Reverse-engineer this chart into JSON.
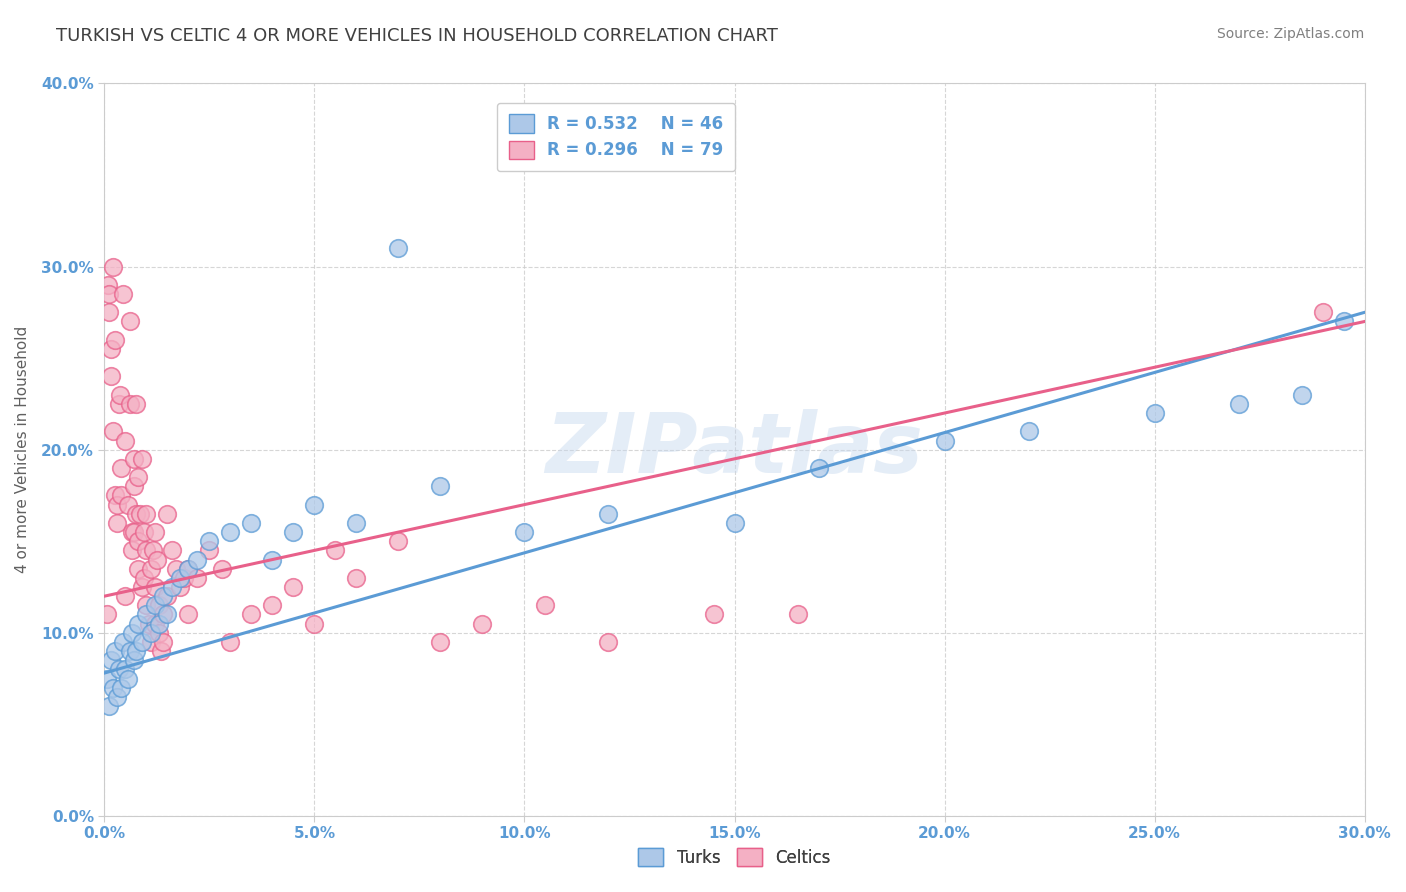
{
  "title": "TURKISH VS CELTIC 4 OR MORE VEHICLES IN HOUSEHOLD CORRELATION CHART",
  "source": "Source: ZipAtlas.com",
  "xlabel_range": [
    0.0,
    30.0
  ],
  "ylabel_range": [
    0.0,
    40.0
  ],
  "ylabel_label": "4 or more Vehicles in Household",
  "legend_bottom": [
    "Turks",
    "Celtics"
  ],
  "turks": {
    "R": 0.532,
    "N": 46,
    "color": "#adc8e8",
    "line_color": "#5b9bd5",
    "scatter": [
      [
        0.05,
        7.5
      ],
      [
        0.1,
        6.0
      ],
      [
        0.15,
        8.5
      ],
      [
        0.2,
        7.0
      ],
      [
        0.25,
        9.0
      ],
      [
        0.3,
        6.5
      ],
      [
        0.35,
        8.0
      ],
      [
        0.4,
        7.0
      ],
      [
        0.45,
        9.5
      ],
      [
        0.5,
        8.0
      ],
      [
        0.55,
        7.5
      ],
      [
        0.6,
        9.0
      ],
      [
        0.65,
        10.0
      ],
      [
        0.7,
        8.5
      ],
      [
        0.75,
        9.0
      ],
      [
        0.8,
        10.5
      ],
      [
        0.9,
        9.5
      ],
      [
        1.0,
        11.0
      ],
      [
        1.1,
        10.0
      ],
      [
        1.2,
        11.5
      ],
      [
        1.3,
        10.5
      ],
      [
        1.4,
        12.0
      ],
      [
        1.5,
        11.0
      ],
      [
        1.6,
        12.5
      ],
      [
        1.8,
        13.0
      ],
      [
        2.0,
        13.5
      ],
      [
        2.2,
        14.0
      ],
      [
        2.5,
        15.0
      ],
      [
        3.0,
        15.5
      ],
      [
        3.5,
        16.0
      ],
      [
        4.0,
        14.0
      ],
      [
        4.5,
        15.5
      ],
      [
        5.0,
        17.0
      ],
      [
        6.0,
        16.0
      ],
      [
        7.0,
        31.0
      ],
      [
        8.0,
        18.0
      ],
      [
        10.0,
        15.5
      ],
      [
        12.0,
        16.5
      ],
      [
        15.0,
        16.0
      ],
      [
        17.0,
        19.0
      ],
      [
        20.0,
        20.5
      ],
      [
        22.0,
        21.0
      ],
      [
        25.0,
        22.0
      ],
      [
        27.0,
        22.5
      ],
      [
        28.5,
        23.0
      ],
      [
        29.5,
        27.0
      ]
    ]
  },
  "celtics": {
    "R": 0.296,
    "N": 79,
    "color": "#f4b0c4",
    "line_color": "#e8608a",
    "scatter": [
      [
        0.05,
        11.0
      ],
      [
        0.08,
        29.0
      ],
      [
        0.1,
        28.5
      ],
      [
        0.12,
        27.5
      ],
      [
        0.15,
        25.5
      ],
      [
        0.15,
        24.0
      ],
      [
        0.2,
        21.0
      ],
      [
        0.2,
        30.0
      ],
      [
        0.25,
        17.5
      ],
      [
        0.25,
        26.0
      ],
      [
        0.3,
        17.0
      ],
      [
        0.3,
        16.0
      ],
      [
        0.35,
        22.5
      ],
      [
        0.38,
        23.0
      ],
      [
        0.4,
        19.0
      ],
      [
        0.4,
        17.5
      ],
      [
        0.45,
        28.5
      ],
      [
        0.5,
        20.5
      ],
      [
        0.5,
        12.0
      ],
      [
        0.55,
        17.0
      ],
      [
        0.6,
        27.0
      ],
      [
        0.6,
        22.5
      ],
      [
        0.65,
        15.5
      ],
      [
        0.65,
        14.5
      ],
      [
        0.7,
        19.5
      ],
      [
        0.7,
        18.0
      ],
      [
        0.7,
        15.5
      ],
      [
        0.75,
        22.5
      ],
      [
        0.75,
        16.5
      ],
      [
        0.8,
        18.5
      ],
      [
        0.8,
        15.0
      ],
      [
        0.8,
        13.5
      ],
      [
        0.85,
        16.5
      ],
      [
        0.9,
        19.5
      ],
      [
        0.9,
        12.5
      ],
      [
        0.95,
        15.5
      ],
      [
        0.95,
        13.0
      ],
      [
        1.0,
        16.5
      ],
      [
        1.0,
        14.5
      ],
      [
        1.0,
        11.5
      ],
      [
        1.05,
        10.5
      ],
      [
        1.1,
        13.5
      ],
      [
        1.1,
        9.5
      ],
      [
        1.15,
        14.5
      ],
      [
        1.2,
        15.5
      ],
      [
        1.2,
        12.5
      ],
      [
        1.2,
        10.5
      ],
      [
        1.25,
        14.0
      ],
      [
        1.3,
        11.5
      ],
      [
        1.3,
        10.0
      ],
      [
        1.35,
        9.0
      ],
      [
        1.4,
        11.0
      ],
      [
        1.4,
        9.5
      ],
      [
        1.5,
        16.5
      ],
      [
        1.5,
        12.0
      ],
      [
        1.6,
        14.5
      ],
      [
        1.7,
        13.5
      ],
      [
        1.8,
        12.5
      ],
      [
        1.9,
        13.0
      ],
      [
        2.0,
        13.5
      ],
      [
        2.0,
        11.0
      ],
      [
        2.2,
        13.0
      ],
      [
        2.5,
        14.5
      ],
      [
        2.8,
        13.5
      ],
      [
        3.0,
        9.5
      ],
      [
        3.5,
        11.0
      ],
      [
        4.0,
        11.5
      ],
      [
        4.5,
        12.5
      ],
      [
        5.0,
        10.5
      ],
      [
        5.5,
        14.5
      ],
      [
        6.0,
        13.0
      ],
      [
        7.0,
        15.0
      ],
      [
        8.0,
        9.5
      ],
      [
        9.0,
        10.5
      ],
      [
        10.5,
        11.5
      ],
      [
        12.0,
        9.5
      ],
      [
        14.5,
        11.0
      ],
      [
        16.5,
        11.0
      ],
      [
        29.0,
        27.5
      ]
    ]
  },
  "turks_line": {
    "x0": 0.0,
    "y0": 7.8,
    "x1": 30.0,
    "y1": 27.5
  },
  "celtics_line": {
    "x0": 0.0,
    "y0": 12.0,
    "x1": 30.0,
    "y1": 27.0
  },
  "watermark": "ZIPatlas",
  "background_color": "#ffffff",
  "grid_color": "#cccccc",
  "title_color": "#404040",
  "source_color": "#808080"
}
